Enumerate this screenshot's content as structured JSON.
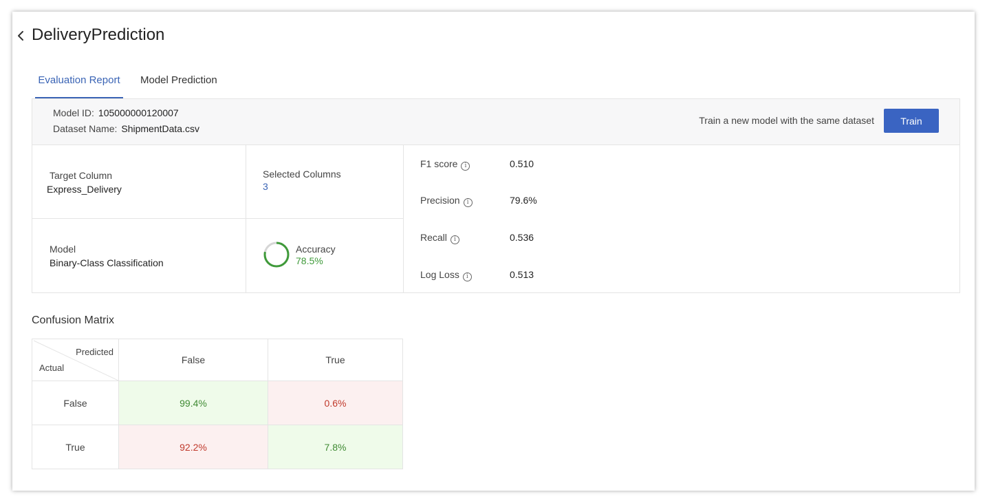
{
  "header": {
    "title": "DeliveryPrediction"
  },
  "tabs": [
    {
      "label": "Evaluation Report",
      "active": true
    },
    {
      "label": "Model Prediction",
      "active": false
    }
  ],
  "info": {
    "model_id_label": "Model ID:",
    "model_id": "105000000120007",
    "dataset_label": "Dataset Name:",
    "dataset_name": "ShipmentData.csv",
    "train_text": "Train a new model with the same dataset",
    "train_button": "Train"
  },
  "summary": {
    "target_column_label": "Target Column",
    "target_column": "Express_Delivery",
    "selected_columns_label": "Selected Columns",
    "selected_columns": "3",
    "model_label": "Model",
    "model": "Binary-Class Classification",
    "accuracy_label": "Accuracy",
    "accuracy": "78.5%",
    "accuracy_fraction": 0.785
  },
  "metrics": [
    {
      "name": "F1 score",
      "value": "0.510"
    },
    {
      "name": "Precision",
      "value": "79.6%"
    },
    {
      "name": "Recall",
      "value": "0.536"
    },
    {
      "name": "Log Loss",
      "value": "0.513"
    }
  ],
  "confusion_matrix": {
    "title": "Confusion Matrix",
    "predicted_label": "Predicted",
    "actual_label": "Actual",
    "columns": [
      "False",
      "True"
    ],
    "rows": [
      {
        "label": "False",
        "values": [
          "99.4%",
          "0.6%"
        ]
      },
      {
        "label": "True",
        "values": [
          "92.2%",
          "7.8%"
        ]
      }
    ]
  },
  "colors": {
    "accent": "#3a64b5",
    "button": "#3a64c2",
    "good": "#3f9a3a",
    "bad": "#c0392b",
    "good_bg": "#effbea",
    "bad_bg": "#fcf0f0"
  },
  "icons": {
    "back": "chevron-left-icon",
    "info": "info-circle-icon"
  }
}
